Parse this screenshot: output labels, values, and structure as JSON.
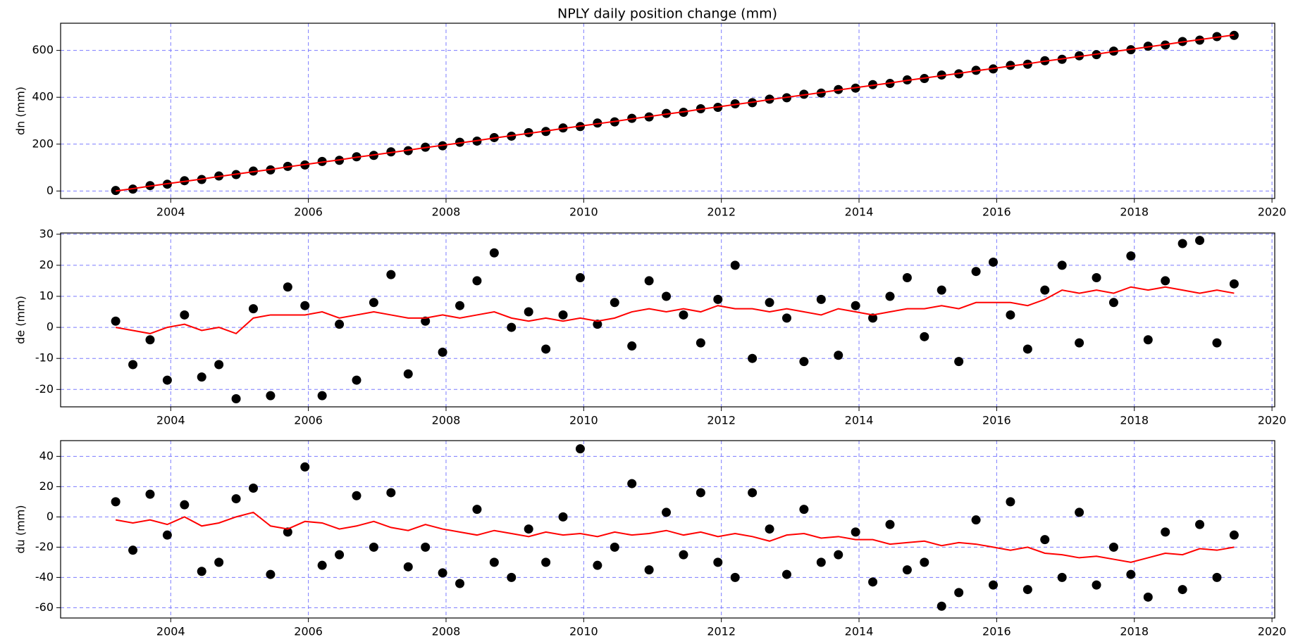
{
  "chart_data": [
    {
      "type": "scatter",
      "title": "NPLY daily position change (mm)",
      "ylabel": "dn (mm)",
      "xlim": [
        2002.4,
        2020.04
      ],
      "xticks": [
        2004,
        2006,
        2008,
        2010,
        2012,
        2014,
        2016,
        2018,
        2020
      ],
      "ylim": [
        -32,
        716
      ],
      "yticks": [
        0,
        200,
        400,
        600
      ],
      "grid": true,
      "x": [
        2003.2,
        2003.45,
        2003.7,
        2003.95,
        2004.2,
        2004.45,
        2004.7,
        2004.95,
        2005.2,
        2005.45,
        2005.7,
        2005.95,
        2006.2,
        2006.45,
        2006.7,
        2006.95,
        2007.2,
        2007.45,
        2007.7,
        2007.95,
        2008.2,
        2008.45,
        2008.7,
        2008.95,
        2009.2,
        2009.45,
        2009.7,
        2009.95,
        2010.2,
        2010.45,
        2010.7,
        2010.95,
        2011.2,
        2011.45,
        2011.7,
        2011.95,
        2012.2,
        2012.45,
        2012.7,
        2012.95,
        2013.2,
        2013.45,
        2013.7,
        2013.95,
        2014.2,
        2014.45,
        2014.7,
        2014.95,
        2015.2,
        2015.45,
        2015.7,
        2015.95,
        2016.2,
        2016.45,
        2016.7,
        2016.95,
        2017.2,
        2017.45,
        2017.7,
        2017.95,
        2018.2,
        2018.45,
        2018.7,
        2018.95,
        2019.2,
        2019.45
      ],
      "series": [
        {
          "type": "scatter",
          "color": "#000000",
          "values": [
            2,
            8,
            23,
            29,
            44,
            49,
            64,
            70,
            85,
            90,
            105,
            111,
            126,
            131,
            146,
            152,
            167,
            172,
            187,
            193,
            208,
            213,
            228,
            234,
            249,
            254,
            269,
            275,
            290,
            295,
            310,
            316,
            331,
            336,
            351,
            357,
            372,
            377,
            392,
            398,
            413,
            418,
            433,
            439,
            454,
            459,
            474,
            480,
            495,
            500,
            515,
            521,
            536,
            541,
            556,
            562,
            577,
            582,
            597,
            603,
            618,
            623,
            638,
            644,
            659,
            664
          ]
        },
        {
          "type": "line",
          "color": "#ff0000",
          "values": [
            0,
            10,
            21,
            31,
            41,
            51,
            62,
            72,
            82,
            92,
            103,
            113,
            123,
            133,
            144,
            154,
            164,
            174,
            185,
            195,
            205,
            215,
            226,
            236,
            246,
            256,
            267,
            277,
            287,
            297,
            308,
            318,
            328,
            338,
            349,
            359,
            369,
            379,
            390,
            400,
            410,
            420,
            431,
            441,
            451,
            461,
            472,
            482,
            492,
            502,
            513,
            523,
            533,
            543,
            554,
            564,
            574,
            584,
            595,
            605,
            615,
            625,
            636,
            646,
            656,
            666
          ]
        }
      ]
    },
    {
      "type": "scatter",
      "ylabel": "de (mm)",
      "xlim": [
        2002.4,
        2020.04
      ],
      "xticks": [
        2004,
        2006,
        2008,
        2010,
        2012,
        2014,
        2016,
        2018,
        2020
      ],
      "ylim": [
        -25.6,
        30.4
      ],
      "yticks": [
        -20,
        -10,
        0,
        10,
        20,
        30
      ],
      "grid": true,
      "x": [
        2003.2,
        2003.45,
        2003.7,
        2003.95,
        2004.2,
        2004.45,
        2004.7,
        2004.95,
        2005.2,
        2005.45,
        2005.7,
        2005.95,
        2006.2,
        2006.45,
        2006.7,
        2006.95,
        2007.2,
        2007.45,
        2007.7,
        2007.95,
        2008.2,
        2008.45,
        2008.7,
        2008.95,
        2009.2,
        2009.45,
        2009.7,
        2009.95,
        2010.2,
        2010.45,
        2010.7,
        2010.95,
        2011.2,
        2011.45,
        2011.7,
        2011.95,
        2012.2,
        2012.45,
        2012.7,
        2012.95,
        2013.2,
        2013.45,
        2013.7,
        2013.95,
        2014.2,
        2014.45,
        2014.7,
        2014.95,
        2015.2,
        2015.45,
        2015.7,
        2015.95,
        2016.2,
        2016.45,
        2016.7,
        2016.95,
        2017.2,
        2017.45,
        2017.7,
        2017.95,
        2018.2,
        2018.45,
        2018.7,
        2018.95,
        2019.2,
        2019.45
      ],
      "series": [
        {
          "type": "scatter",
          "color": "#000000",
          "values": [
            2,
            -12,
            -4,
            -17,
            4,
            -16,
            -12,
            -23,
            6,
            -22,
            13,
            7,
            -22,
            1,
            -17,
            8,
            17,
            -15,
            2,
            -8,
            7,
            15,
            24,
            0,
            5,
            -7,
            4,
            16,
            1,
            8,
            -6,
            15,
            10,
            4,
            -5,
            9,
            20,
            -10,
            8,
            3,
            -11,
            9,
            -9,
            7,
            3,
            10,
            16,
            -3,
            12,
            -11,
            18,
            21,
            4,
            -7,
            12,
            20,
            -5,
            16,
            8,
            23,
            -4,
            15,
            27,
            28,
            -5,
            14
          ]
        },
        {
          "type": "line",
          "color": "#ff0000",
          "values": [
            0,
            -1,
            -2,
            0,
            1,
            -1,
            0,
            -2,
            3,
            4,
            4,
            4,
            5,
            3,
            4,
            5,
            4,
            3,
            3,
            4,
            3,
            4,
            5,
            3,
            2,
            3,
            2,
            3,
            2,
            3,
            5,
            6,
            5,
            6,
            5,
            7,
            6,
            6,
            5,
            6,
            5,
            4,
            6,
            5,
            4,
            5,
            6,
            6,
            7,
            6,
            8,
            8,
            8,
            7,
            9,
            12,
            11,
            12,
            11,
            13,
            12,
            13,
            12,
            11,
            12,
            11
          ]
        }
      ]
    },
    {
      "type": "scatter",
      "ylabel": "du (mm)",
      "xlim": [
        2002.4,
        2020.04
      ],
      "xticks": [
        2004,
        2006,
        2008,
        2010,
        2012,
        2014,
        2016,
        2018,
        2020
      ],
      "ylim": [
        -66.8,
        50.4
      ],
      "yticks": [
        -60,
        -40,
        -20,
        0,
        20,
        40
      ],
      "grid": true,
      "x": [
        2003.2,
        2003.45,
        2003.7,
        2003.95,
        2004.2,
        2004.45,
        2004.7,
        2004.95,
        2005.2,
        2005.45,
        2005.7,
        2005.95,
        2006.2,
        2006.45,
        2006.7,
        2006.95,
        2007.2,
        2007.45,
        2007.7,
        2007.95,
        2008.2,
        2008.45,
        2008.7,
        2008.95,
        2009.2,
        2009.45,
        2009.7,
        2009.95,
        2010.2,
        2010.45,
        2010.7,
        2010.95,
        2011.2,
        2011.45,
        2011.7,
        2011.95,
        2012.2,
        2012.45,
        2012.7,
        2012.95,
        2013.2,
        2013.45,
        2013.7,
        2013.95,
        2014.2,
        2014.45,
        2014.7,
        2014.95,
        2015.2,
        2015.45,
        2015.7,
        2015.95,
        2016.2,
        2016.45,
        2016.7,
        2016.95,
        2017.2,
        2017.45,
        2017.7,
        2017.95,
        2018.2,
        2018.45,
        2018.7,
        2018.95,
        2019.2,
        2019.45
      ],
      "series": [
        {
          "type": "scatter",
          "color": "#000000",
          "values": [
            10,
            -22,
            15,
            -12,
            8,
            -36,
            -30,
            12,
            19,
            -38,
            -10,
            33,
            -32,
            -25,
            14,
            -20,
            16,
            -33,
            -20,
            -37,
            -44,
            5,
            -30,
            -40,
            -8,
            -30,
            0,
            45,
            -32,
            -20,
            22,
            -35,
            3,
            -25,
            16,
            -30,
            -40,
            16,
            -8,
            -38,
            5,
            -30,
            -25,
            -10,
            -43,
            -5,
            -35,
            -30,
            -59,
            -50,
            -2,
            -45,
            10,
            -48,
            -15,
            -40,
            3,
            -45,
            -20,
            -38,
            -53,
            -10,
            -48,
            -5,
            -40,
            -12
          ]
        },
        {
          "type": "line",
          "color": "#ff0000",
          "values": [
            -2,
            -4,
            -2,
            -5,
            0,
            -6,
            -4,
            0,
            3,
            -6,
            -8,
            -3,
            -4,
            -8,
            -6,
            -3,
            -7,
            -9,
            -5,
            -8,
            -10,
            -12,
            -9,
            -11,
            -13,
            -10,
            -12,
            -11,
            -13,
            -10,
            -12,
            -11,
            -9,
            -12,
            -10,
            -13,
            -11,
            -13,
            -16,
            -12,
            -11,
            -14,
            -13,
            -15,
            -15,
            -18,
            -17,
            -16,
            -19,
            -17,
            -18,
            -20,
            -22,
            -20,
            -24,
            -25,
            -27,
            -26,
            -28,
            -30,
            -27,
            -24,
            -25,
            -21,
            -22,
            -20
          ]
        }
      ]
    }
  ]
}
